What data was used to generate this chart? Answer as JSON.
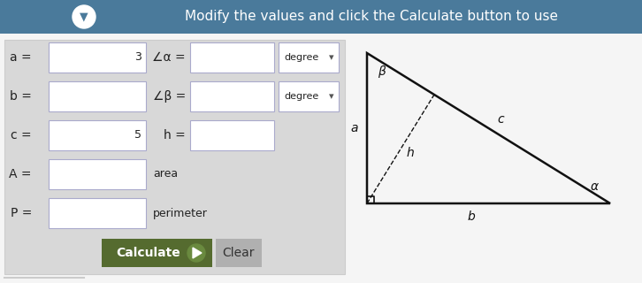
{
  "header_bg": "#4a7a9b",
  "header_text": "Modify the values and click the Calculate button to use",
  "header_text_color": "#ffffff",
  "form_bg": "#d8d8d8",
  "body_bg": "#f5f5f5",
  "input_bg": "#ffffff",
  "input_border": "#aaaacc",
  "label_color": "#222222",
  "rows": [
    {
      "label": "a =",
      "value": "3",
      "label2": "∠α =",
      "has_dropdown": true
    },
    {
      "label": "b =",
      "value": "",
      "label2": "∠β =",
      "has_dropdown": true
    },
    {
      "label": "c =",
      "value": "5",
      "label2": "h =",
      "has_dropdown": false
    }
  ],
  "extra_rows": [
    {
      "label": "A =",
      "suffix": "area"
    },
    {
      "label": "P =",
      "suffix": "perimeter"
    }
  ],
  "calc_btn_bg": "#556b2f",
  "calc_btn_text": "Calculate",
  "calc_btn_text_color": "#ffffff",
  "clear_btn_bg": "#b0b0b0",
  "clear_btn_text": "Clear",
  "clear_btn_text_color": "#333333",
  "triangle_color": "#111111",
  "footer_line_color": "#cccccc"
}
